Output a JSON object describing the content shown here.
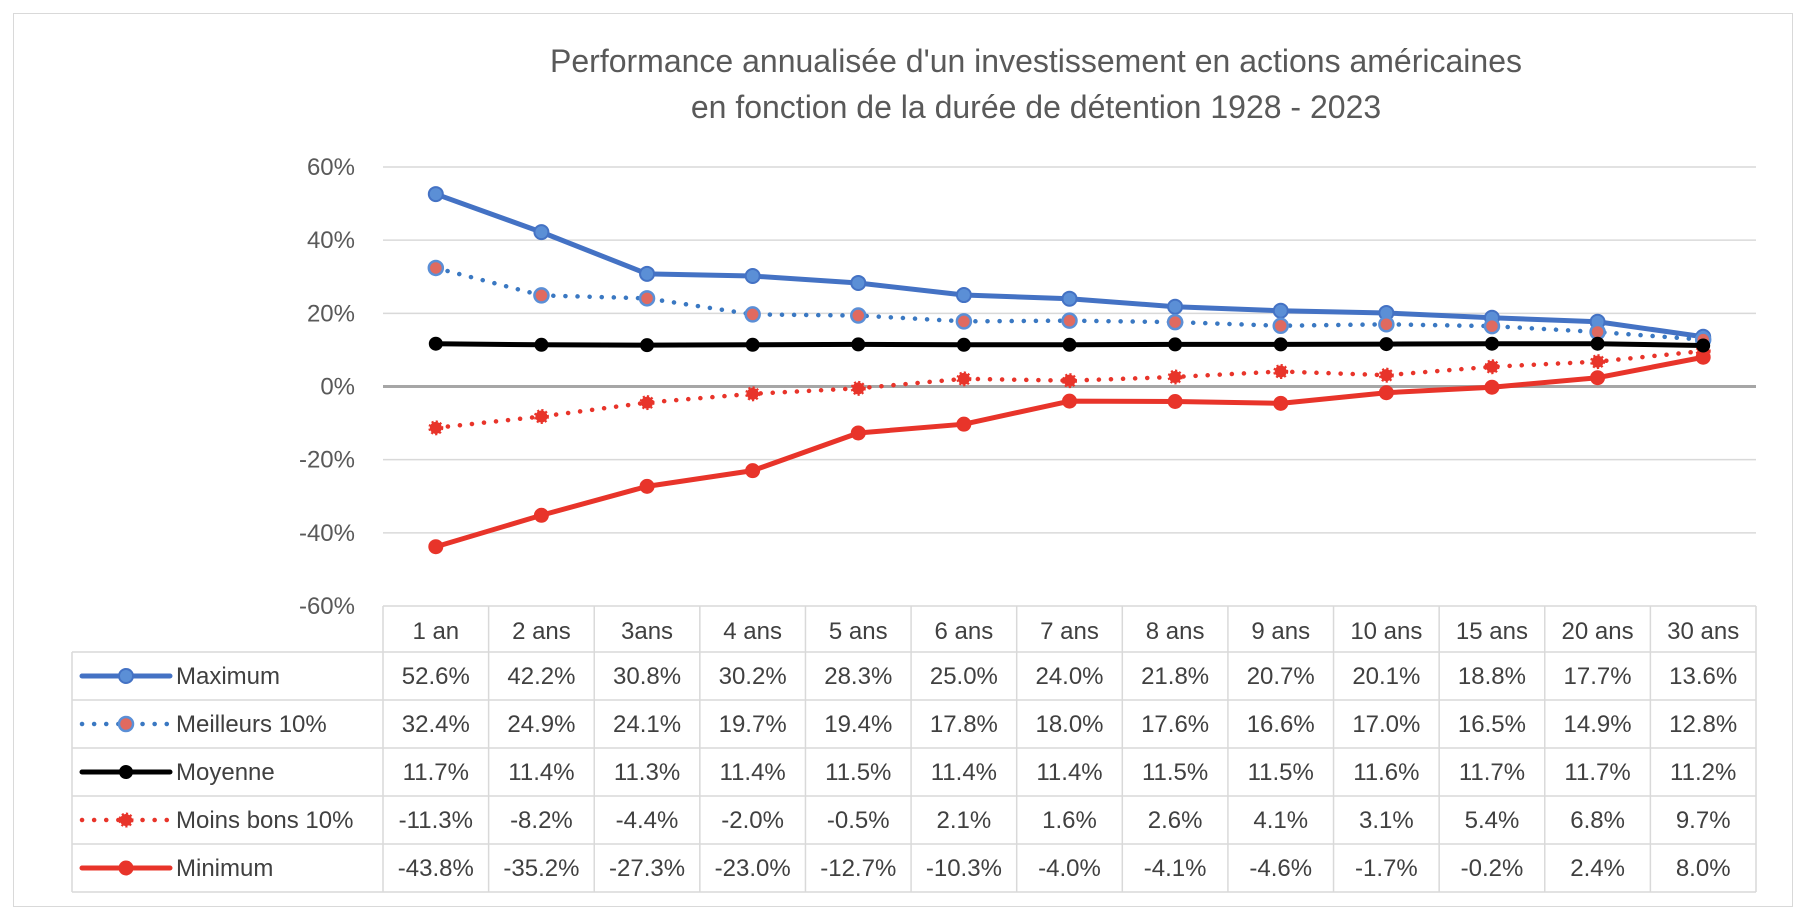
{
  "chart_data": {
    "type": "line",
    "title": "Performance annualisée d'un investissement en actions américaines",
    "subtitle": "en fonction de la durée de détention 1928 - 2023",
    "ylim": [
      -60,
      60
    ],
    "yticks": [
      "60%",
      "40%",
      "20%",
      "0%",
      "-20%",
      "-40%",
      "-60%"
    ],
    "grid": true,
    "legend_position": "data-table",
    "categories": [
      "1 an",
      "2 ans",
      "3ans",
      "4 ans",
      "5 ans",
      "6 ans",
      "7 ans",
      "8 ans",
      "9 ans",
      "10 ans",
      "15 ans",
      "20 ans",
      "30 ans"
    ],
    "series": [
      {
        "name": "Maximum",
        "color": "#4472c4",
        "style": "solid",
        "values": [
          52.6,
          42.2,
          30.8,
          30.2,
          28.3,
          25.0,
          24.0,
          21.8,
          20.7,
          20.1,
          18.8,
          17.7,
          13.6
        ],
        "labels": [
          "52.6%",
          "42.2%",
          "30.8%",
          "30.2%",
          "28.3%",
          "25.0%",
          "24.0%",
          "21.8%",
          "20.7%",
          "20.1%",
          "18.8%",
          "17.7%",
          "13.6%"
        ]
      },
      {
        "name": "Meilleurs 10%",
        "color": "#3a78c2",
        "style": "dotted",
        "values": [
          32.4,
          24.9,
          24.1,
          19.7,
          19.4,
          17.8,
          18.0,
          17.6,
          16.6,
          17.0,
          16.5,
          14.9,
          12.8
        ],
        "labels": [
          "32.4%",
          "24.9%",
          "24.1%",
          "19.7%",
          "19.4%",
          "17.8%",
          "18.0%",
          "17.6%",
          "16.6%",
          "17.0%",
          "16.5%",
          "14.9%",
          "12.8%"
        ]
      },
      {
        "name": "Moyenne",
        "color": "#000000",
        "style": "solid",
        "values": [
          11.7,
          11.4,
          11.3,
          11.4,
          11.5,
          11.4,
          11.4,
          11.5,
          11.5,
          11.6,
          11.7,
          11.7,
          11.2
        ],
        "labels": [
          "11.7%",
          "11.4%",
          "11.3%",
          "11.4%",
          "11.5%",
          "11.4%",
          "11.4%",
          "11.5%",
          "11.5%",
          "11.6%",
          "11.7%",
          "11.7%",
          "11.2%"
        ]
      },
      {
        "name": "Moins bons 10%",
        "color": "#e8342a",
        "style": "dotted",
        "values": [
          -11.3,
          -8.2,
          -4.4,
          -2.0,
          -0.5,
          2.1,
          1.6,
          2.6,
          4.1,
          3.1,
          5.4,
          6.8,
          9.7
        ],
        "labels": [
          "-11.3%",
          "-8.2%",
          "-4.4%",
          "-2.0%",
          "-0.5%",
          "2.1%",
          "1.6%",
          "2.6%",
          "4.1%",
          "3.1%",
          "5.4%",
          "6.8%",
          "9.7%"
        ]
      },
      {
        "name": "Minimum",
        "color": "#e8342a",
        "style": "solid",
        "values": [
          -43.8,
          -35.2,
          -27.3,
          -23.0,
          -12.7,
          -10.3,
          -4.0,
          -4.1,
          -4.6,
          -1.7,
          -0.2,
          2.4,
          8.0
        ],
        "labels": [
          "-43.8%",
          "-35.2%",
          "-27.3%",
          "-23.0%",
          "-12.7%",
          "-10.3%",
          "-4.0%",
          "-4.1%",
          "-4.6%",
          "-1.7%",
          "-0.2%",
          "2.4%",
          "8.0%"
        ]
      }
    ]
  }
}
